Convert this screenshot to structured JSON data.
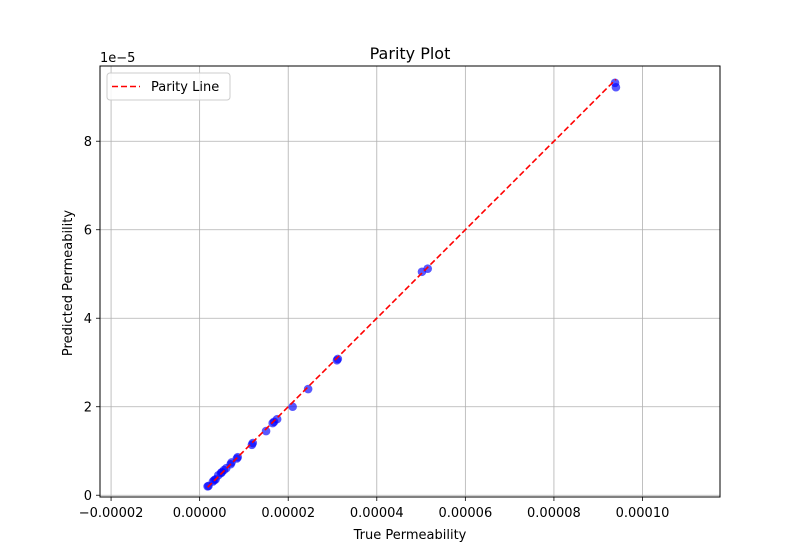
{
  "chart_data": {
    "type": "scatter",
    "title": "Parity Plot",
    "xlabel": "True Permeability",
    "ylabel": "Predicted Permeability",
    "y_offset_label": "1e−5",
    "xlim": [
      -2.25e-05,
      0.0001175
    ],
    "ylim": [
      -4e-07,
      9.7e-05
    ],
    "x_ticks": [
      -2e-05,
      0.0,
      2e-05,
      4e-05,
      6e-05,
      8e-05,
      0.0001
    ],
    "x_tick_labels": [
      "−0.00002",
      "0.00000",
      "0.00002",
      "0.00004",
      "0.00006",
      "0.00008",
      "0.00010"
    ],
    "y_ticks": [
      0.0,
      2e-05,
      4e-05,
      6e-05,
      8e-05
    ],
    "y_tick_labels": [
      "0",
      "2",
      "4",
      "6",
      "8"
    ],
    "grid": true,
    "legend_position": "top-left",
    "series": [
      {
        "kind": "scatter",
        "color": "#0000ff",
        "alpha": 0.65,
        "points": [
          [
            1.8e-06,
            2e-06
          ],
          [
            2e-06,
            2.1e-06
          ],
          [
            3e-06,
            3.1e-06
          ],
          [
            3.3e-06,
            3.4e-06
          ],
          [
            3.6e-06,
            3.6e-06
          ],
          [
            4.2e-06,
            4.5e-06
          ],
          [
            4.8e-06,
            5e-06
          ],
          [
            5e-06,
            5.2e-06
          ],
          [
            5.5e-06,
            5.7e-06
          ],
          [
            6e-06,
            6.1e-06
          ],
          [
            7e-06,
            7e-06
          ],
          [
            7.2e-06,
            7.4e-06
          ],
          [
            8.4e-06,
            8.3e-06
          ],
          [
            8.6e-06,
            8.6e-06
          ],
          [
            1.18e-05,
            1.14e-05
          ],
          [
            1.2e-05,
            1.18e-05
          ],
          [
            1.5e-05,
            1.45e-05
          ],
          [
            1.65e-05,
            1.63e-05
          ],
          [
            1.68e-05,
            1.66e-05
          ],
          [
            1.75e-05,
            1.72e-05
          ],
          [
            2.1e-05,
            2e-05
          ],
          [
            2.45e-05,
            2.4e-05
          ],
          [
            3.1e-05,
            3.05e-05
          ],
          [
            3.12e-05,
            3.08e-05
          ],
          [
            5.02e-05,
            5.05e-05
          ],
          [
            5.15e-05,
            5.12e-05
          ],
          [
            9.38e-05,
            9.32e-05
          ],
          [
            9.4e-05,
            9.22e-05
          ]
        ]
      },
      {
        "name": "Parity Line",
        "kind": "line",
        "color": "#ff0000",
        "dashed": true,
        "x": [
          1.8e-06,
          9.4e-05
        ],
        "y": [
          1.8e-06,
          9.4e-05
        ]
      }
    ]
  }
}
